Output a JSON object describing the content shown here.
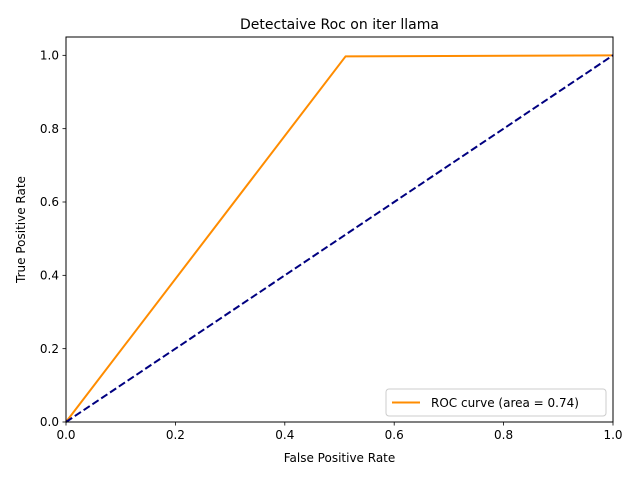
{
  "chart_data": {
    "type": "line",
    "title": "Detectaive Roc on iter llama",
    "xlabel": "False Positive Rate",
    "ylabel": "True Positive Rate",
    "xlim": [
      0.0,
      1.0
    ],
    "ylim": [
      0.0,
      1.05
    ],
    "xticks": [
      0.0,
      0.2,
      0.4,
      0.6,
      0.8,
      1.0
    ],
    "xtick_labels": [
      "0.0",
      "0.2",
      "0.4",
      "0.6",
      "0.8",
      "1.0"
    ],
    "yticks": [
      0.0,
      0.2,
      0.4,
      0.6,
      0.8,
      1.0
    ],
    "ytick_labels": [
      "0.0",
      "0.2",
      "0.4",
      "0.6",
      "0.8",
      "1.0"
    ],
    "grid": false,
    "legend_position": "lower-right",
    "series": [
      {
        "name": "ROC curve (area = 0.74)",
        "color": "#ff8c00",
        "style": "solid",
        "in_legend": true,
        "x": [
          0.0,
          0.511,
          1.0
        ],
        "y": [
          0.0,
          0.997,
          1.0
        ]
      },
      {
        "color": "#000080",
        "style": "dashed",
        "in_legend": false,
        "x": [
          0.0,
          1.0
        ],
        "y": [
          0.0,
          1.0
        ]
      }
    ]
  }
}
